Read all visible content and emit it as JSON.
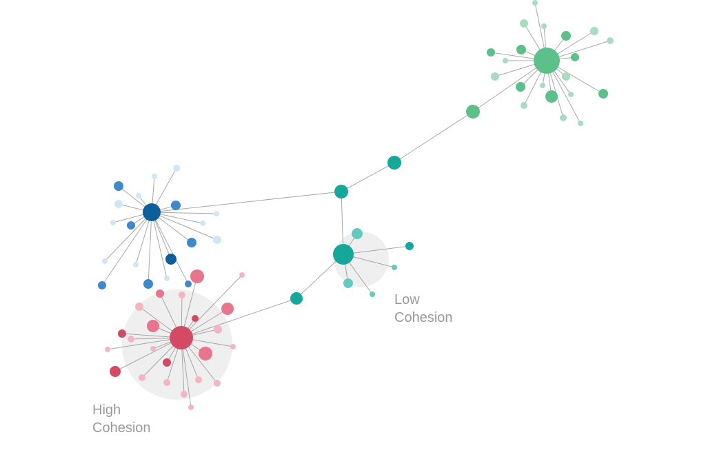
{
  "labels": {
    "low_cohesion": [
      "Low",
      "Cohesion"
    ],
    "high_cohesion": [
      "High",
      "Cohesion"
    ]
  },
  "colors": {
    "edge": "#9e9e9e",
    "halo": "#efefef",
    "blue_dark": "#0d5f9c",
    "blue_mid": "#3d89cc",
    "blue_light": "#cfe6f7",
    "pink_dark": "#d44a64",
    "pink_mid": "#e9748d",
    "pink_light": "#f5b4c2",
    "teal": "#14a79a",
    "teal_light": "#66c9bd",
    "green": "#5cc08a",
    "green_light": "#a8dcc0"
  },
  "clusters": [
    {
      "id": "blue",
      "hub_color": "blue_dark",
      "halo": false
    },
    {
      "id": "pink",
      "hub_color": "pink_dark",
      "halo": true
    },
    {
      "id": "teal",
      "hub_color": "teal",
      "halo": true
    },
    {
      "id": "green",
      "hub_color": "green",
      "halo": false
    }
  ]
}
